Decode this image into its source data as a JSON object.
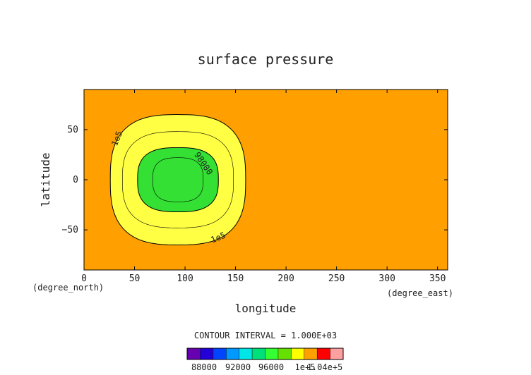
{
  "chart_data": {
    "type": "contour",
    "title": "surface pressure",
    "xlabel": "longitude",
    "ylabel": "latitude",
    "x_units": "(degree_east)",
    "y_units": "(degree_north)",
    "xlim": [
      0,
      360
    ],
    "ylim": [
      -90,
      90
    ],
    "x_ticks": [
      0,
      50,
      100,
      150,
      200,
      250,
      300,
      350
    ],
    "y_ticks": [
      -50,
      0,
      50
    ],
    "x_tick_labels": [
      "0",
      "50",
      "100",
      "150",
      "200",
      "250",
      "300",
      "350"
    ],
    "y_tick_labels": [
      "−50",
      "0",
      "50"
    ],
    "contour_interval_text": "CONTOUR INTERVAL = 1.000E+03",
    "background_value": 101000,
    "contours": [
      {
        "value": 100000,
        "label": "1e5",
        "center": [
          93,
          0
        ],
        "rx": 67,
        "ry": 65
      },
      {
        "value": 99000,
        "label": "",
        "center": [
          93,
          0
        ],
        "rx": 55,
        "ry": 48
      },
      {
        "value": 98000,
        "label": "98000",
        "center": [
          93,
          0
        ],
        "rx": 40,
        "ry": 32
      },
      {
        "value": 97000,
        "label": "",
        "center": [
          93,
          0
        ],
        "rx": 25,
        "ry": 22
      }
    ],
    "colorbar": {
      "levels": [
        88000,
        104000
      ],
      "tick_labels": [
        "88000",
        "92000",
        "96000",
        "1e+5",
        "1.04e+5"
      ],
      "colors": [
        "#6600b0",
        "#2400d8",
        "#0044ff",
        "#0099ff",
        "#00e6e6",
        "#00e07a",
        "#33ff33",
        "#66e000",
        "#ffff00",
        "#ffa000",
        "#ff0000",
        "#ffa0a0"
      ]
    },
    "fill_colors": {
      "background": "#ffa000",
      "le_100000": "#ffff44",
      "le_98000": "#33e033"
    },
    "grid": false,
    "legend": "bottom-center colorbar"
  }
}
